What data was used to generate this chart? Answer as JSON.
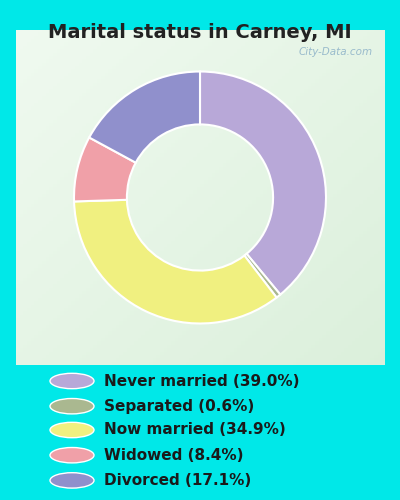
{
  "title": "Marital status in Carney, MI",
  "title_fontsize": 14,
  "title_fontweight": "bold",
  "title_color": "#222222",
  "background_cyan": "#00e8e8",
  "background_inner_tl": "#e8f8ee",
  "background_inner_br": "#d0eedd",
  "categories": [
    "Never married",
    "Separated",
    "Now married",
    "Widowed",
    "Divorced"
  ],
  "values": [
    39.0,
    0.6,
    34.9,
    8.4,
    17.1
  ],
  "colors": [
    "#b8a8d8",
    "#aab890",
    "#f0f080",
    "#f0a0a8",
    "#9090cc"
  ],
  "legend_labels": [
    "Never married (39.0%)",
    "Separated (0.6%)",
    "Now married (34.9%)",
    "Widowed (8.4%)",
    "Divorced (17.1%)"
  ],
  "legend_fontsize": 11,
  "donut_width": 0.42,
  "watermark": "City-Data.com"
}
